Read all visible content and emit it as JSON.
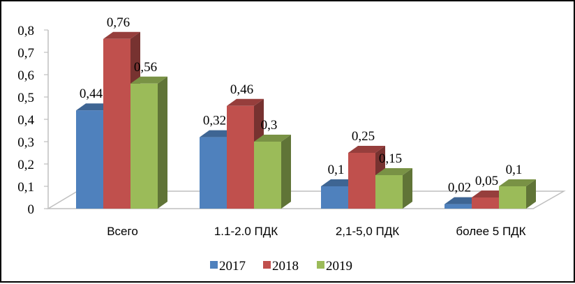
{
  "chart_data": {
    "type": "bar",
    "categories": [
      "Всего",
      "1.1-2.0 ПДК",
      "2,1-5,0 ПДК",
      "более 5 ПДК"
    ],
    "series": [
      {
        "name": "2017",
        "values": [
          0.44,
          0.32,
          0.1,
          0.02
        ],
        "labels": [
          "0,44",
          "0,32",
          "0,1",
          "0,02"
        ],
        "color": "#4F81BD"
      },
      {
        "name": "2018",
        "values": [
          0.76,
          0.46,
          0.25,
          0.05
        ],
        "labels": [
          "0,76",
          "0,46",
          "0,25",
          "0,05"
        ],
        "color": "#C0504D"
      },
      {
        "name": "2019",
        "values": [
          0.56,
          0.3,
          0.15,
          0.1
        ],
        "labels": [
          "0,56",
          "0,3",
          "0,15",
          "0,1"
        ],
        "color": "#9BBB59"
      }
    ],
    "yticks": [
      "0",
      "0,1",
      "0,2",
      "0,3",
      "0,4",
      "0,5",
      "0,6",
      "0,7",
      "0,8"
    ],
    "ylim": [
      0,
      0.8
    ],
    "title": "",
    "xlabel": "",
    "ylabel": "",
    "grid": false,
    "legend_position": "bottom",
    "style": "3d-clustered-column"
  }
}
